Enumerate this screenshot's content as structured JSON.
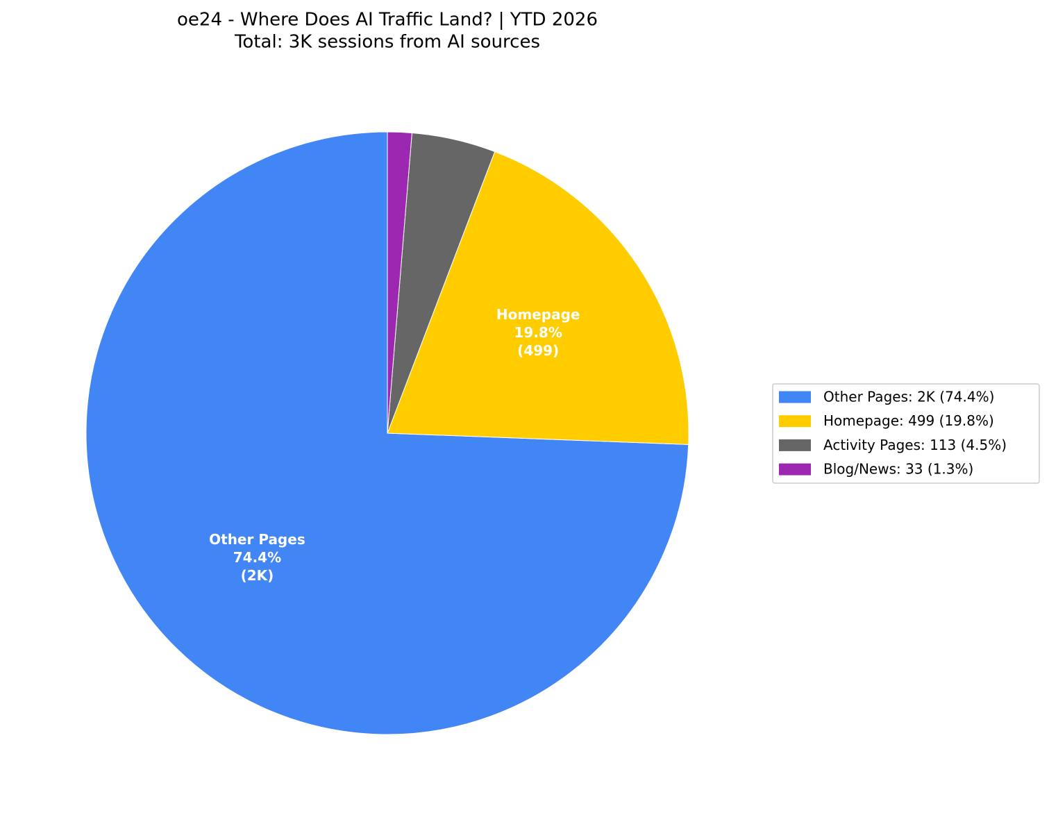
{
  "chart_data": {
    "type": "pie",
    "title": "oe24 - Where Does AI Traffic Land? | YTD 2026",
    "subtitle": "Total: 3K sessions from AI sources",
    "categories": [
      "Other Pages",
      "Homepage",
      "Activity Pages",
      "Blog/News"
    ],
    "values": [
      74.4,
      19.8,
      4.5,
      1.3
    ],
    "value_labels": [
      "74.4%",
      "19.8%",
      null,
      null
    ],
    "count_labels": [
      "(2K)",
      "(499)",
      null,
      null
    ],
    "colors": [
      "#4285f4",
      "#ffcc00",
      "#666666",
      "#9c27b0"
    ],
    "start_angle": 90,
    "direction": "counterclockwise",
    "legend_labels": [
      "Other Pages: 2K (74.4%)",
      "Homepage: 499 (19.8%)",
      "Activity Pages: 113 (4.5%)",
      "Blog/News: 33 (1.3%)"
    ],
    "legend": "right"
  }
}
